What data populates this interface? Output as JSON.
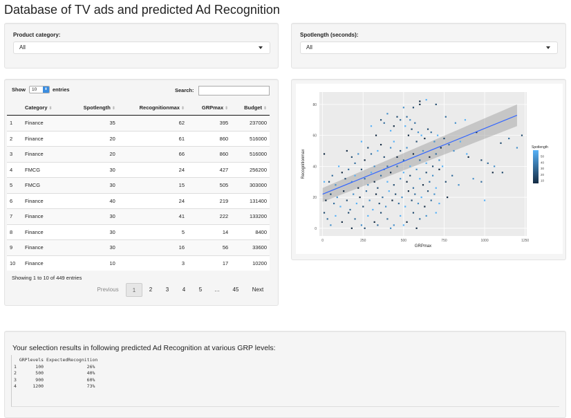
{
  "title": "Database of TV ads and predicted Ad Recognition",
  "filters": {
    "category_label": "Product category:",
    "category_value": "All",
    "spotlength_label": "Spotlength (seconds):",
    "spotlength_value": "All"
  },
  "table": {
    "show_label": "Show",
    "entries_value": "10",
    "entries_label": "entries",
    "search_label": "Search:",
    "columns": [
      "Category",
      "Spotlength",
      "Recognitionmax",
      "GRPmax",
      "Budget"
    ],
    "rows": [
      [
        "1",
        "Finance",
        "35",
        "62",
        "395",
        "237000"
      ],
      [
        "2",
        "Finance",
        "20",
        "61",
        "860",
        "516000"
      ],
      [
        "3",
        "Finance",
        "20",
        "66",
        "860",
        "516000"
      ],
      [
        "4",
        "FMCG",
        "30",
        "24",
        "427",
        "256200"
      ],
      [
        "5",
        "FMCG",
        "30",
        "15",
        "505",
        "303000"
      ],
      [
        "6",
        "Finance",
        "40",
        "24",
        "219",
        "131400"
      ],
      [
        "7",
        "Finance",
        "30",
        "41",
        "222",
        "133200"
      ],
      [
        "8",
        "Finance",
        "30",
        "5",
        "14",
        "8400"
      ],
      [
        "9",
        "Finance",
        "30",
        "16",
        "56",
        "33600"
      ],
      [
        "10",
        "Finance",
        "10",
        "3",
        "17",
        "10200"
      ]
    ],
    "info": "Showing 1 to 10 of 449 entries",
    "pagination": {
      "previous": "Previous",
      "pages": [
        "1",
        "2",
        "3",
        "4",
        "5",
        "…",
        "45"
      ],
      "next": "Next"
    }
  },
  "chart_data": {
    "type": "scatter",
    "xlabel": "GRPmax",
    "ylabel": "Recognitionmax",
    "xlim": [
      -20,
      1260
    ],
    "ylim": [
      -5,
      88
    ],
    "x_ticks": [
      "0",
      "250",
      "500",
      "750",
      "1000",
      "1250"
    ],
    "y_ticks": [
      "0",
      "20",
      "40",
      "60",
      "80"
    ],
    "x_tick_values": [
      0,
      250,
      500,
      750,
      1000,
      1250
    ],
    "y_tick_values": [
      0,
      20,
      40,
      60,
      80
    ],
    "legend_title": "Spotlength",
    "legend_ticks": [
      "50",
      "40",
      "30",
      "20",
      "10"
    ],
    "legend_tick_values": [
      50,
      40,
      30,
      20,
      10
    ],
    "legend_range": [
      5,
      60
    ],
    "trend": {
      "x": [
        0,
        1200
      ],
      "y": [
        22,
        73
      ],
      "band_low_start": 17,
      "band_high_start": 26,
      "band_low_end": 66,
      "band_high_end": 80
    },
    "point_count_description": "449 points",
    "colors": {
      "panel": "#ebebeb",
      "grid": "#ffffff",
      "line": "#3366ff",
      "band": "#999999",
      "low": "#132b43",
      "high": "#56b1f7"
    },
    "points": [
      [
        600,
        80
      ],
      [
        560,
        78
      ],
      [
        520,
        72
      ],
      [
        540,
        70
      ],
      [
        640,
        83
      ],
      [
        600,
        82
      ],
      [
        700,
        80
      ],
      [
        760,
        72
      ],
      [
        820,
        68
      ],
      [
        880,
        70
      ],
      [
        950,
        62
      ],
      [
        1100,
        55
      ],
      [
        1150,
        58
      ],
      [
        1200,
        52
      ],
      [
        300,
        66
      ],
      [
        330,
        60
      ],
      [
        360,
        70
      ],
      [
        380,
        68
      ],
      [
        400,
        74
      ],
      [
        420,
        63
      ],
      [
        440,
        66
      ],
      [
        460,
        72
      ],
      [
        480,
        70
      ],
      [
        500,
        78
      ],
      [
        510,
        66
      ],
      [
        530,
        60
      ],
      [
        550,
        64
      ],
      [
        570,
        68
      ],
      [
        590,
        62
      ],
      [
        610,
        60
      ],
      [
        630,
        58
      ],
      [
        650,
        64
      ],
      [
        670,
        62
      ],
      [
        690,
        56
      ],
      [
        710,
        60
      ],
      [
        730,
        52
      ],
      [
        750,
        58
      ],
      [
        780,
        54
      ],
      [
        810,
        50
      ],
      [
        850,
        56
      ],
      [
        900,
        46
      ],
      [
        980,
        44
      ],
      [
        1020,
        42
      ],
      [
        1060,
        40
      ],
      [
        1000,
        18
      ],
      [
        1050,
        36
      ],
      [
        1110,
        36
      ],
      [
        980,
        30
      ],
      [
        930,
        32
      ],
      [
        890,
        48
      ],
      [
        150,
        50
      ],
      [
        180,
        46
      ],
      [
        200,
        42
      ],
      [
        220,
        48
      ],
      [
        240,
        56
      ],
      [
        260,
        44
      ],
      [
        280,
        52
      ],
      [
        300,
        48
      ],
      [
        320,
        40
      ],
      [
        340,
        50
      ],
      [
        360,
        54
      ],
      [
        380,
        46
      ],
      [
        400,
        40
      ],
      [
        420,
        52
      ],
      [
        440,
        56
      ],
      [
        460,
        46
      ],
      [
        480,
        50
      ],
      [
        500,
        44
      ],
      [
        520,
        52
      ],
      [
        540,
        40
      ],
      [
        560,
        48
      ],
      [
        580,
        56
      ],
      [
        600,
        44
      ],
      [
        620,
        50
      ],
      [
        640,
        42
      ],
      [
        660,
        46
      ],
      [
        680,
        40
      ],
      [
        700,
        48
      ],
      [
        720,
        44
      ],
      [
        740,
        40
      ],
      [
        10,
        48
      ],
      [
        40,
        30
      ],
      [
        60,
        34
      ],
      [
        80,
        28
      ],
      [
        100,
        40
      ],
      [
        120,
        36
      ],
      [
        140,
        32
      ],
      [
        160,
        38
      ],
      [
        180,
        30
      ],
      [
        200,
        34
      ],
      [
        220,
        26
      ],
      [
        240,
        38
      ],
      [
        260,
        32
      ],
      [
        280,
        28
      ],
      [
        300,
        36
      ],
      [
        320,
        30
      ],
      [
        340,
        26
      ],
      [
        360,
        34
      ],
      [
        380,
        38
      ],
      [
        400,
        30
      ],
      [
        420,
        36
      ],
      [
        440,
        28
      ],
      [
        460,
        40
      ],
      [
        480,
        32
      ],
      [
        500,
        36
      ],
      [
        520,
        30
      ],
      [
        540,
        34
      ],
      [
        560,
        26
      ],
      [
        580,
        38
      ],
      [
        600,
        32
      ],
      [
        620,
        28
      ],
      [
        640,
        36
      ],
      [
        660,
        30
      ],
      [
        680,
        34
      ],
      [
        700,
        26
      ],
      [
        720,
        38
      ],
      [
        760,
        30
      ],
      [
        800,
        34
      ],
      [
        840,
        28
      ],
      [
        10,
        30
      ],
      [
        20,
        18
      ],
      [
        50,
        22
      ],
      [
        70,
        16
      ],
      [
        90,
        20
      ],
      [
        110,
        14
      ],
      [
        130,
        24
      ],
      [
        150,
        18
      ],
      [
        170,
        12
      ],
      [
        190,
        22
      ],
      [
        210,
        16
      ],
      [
        230,
        20
      ],
      [
        250,
        14
      ],
      [
        270,
        24
      ],
      [
        290,
        18
      ],
      [
        310,
        12
      ],
      [
        330,
        22
      ],
      [
        350,
        16
      ],
      [
        370,
        20
      ],
      [
        390,
        14
      ],
      [
        410,
        24
      ],
      [
        430,
        18
      ],
      [
        450,
        22
      ],
      [
        470,
        16
      ],
      [
        490,
        20
      ],
      [
        510,
        14
      ],
      [
        530,
        24
      ],
      [
        550,
        18
      ],
      [
        570,
        22
      ],
      [
        590,
        16
      ],
      [
        610,
        20
      ],
      [
        630,
        14
      ],
      [
        650,
        24
      ],
      [
        670,
        18
      ],
      [
        690,
        22
      ],
      [
        720,
        16
      ],
      [
        770,
        20
      ],
      [
        10,
        10
      ],
      [
        30,
        6
      ],
      [
        50,
        2
      ],
      [
        80,
        8
      ],
      [
        120,
        4
      ],
      [
        160,
        10
      ],
      [
        200,
        6
      ],
      [
        240,
        2
      ],
      [
        280,
        8
      ],
      [
        320,
        4
      ],
      [
        360,
        10
      ],
      [
        400,
        6
      ],
      [
        440,
        2
      ],
      [
        480,
        8
      ],
      [
        520,
        4
      ],
      [
        560,
        10
      ],
      [
        600,
        6
      ],
      [
        640,
        8
      ],
      [
        700,
        10
      ],
      [
        180,
        0
      ],
      [
        260,
        0
      ],
      [
        340,
        2
      ],
      [
        420,
        0
      ],
      [
        500,
        2
      ],
      [
        580,
        0
      ],
      [
        1230,
        60
      ]
    ]
  },
  "output": {
    "heading": "Your selection results in following predicted Ad Recognition at various GRP levels:",
    "text": "  GRPlevels ExpectedRecognition\n1       100                26%\n2       500                40%\n3       900                60%\n4      1200                73%"
  }
}
